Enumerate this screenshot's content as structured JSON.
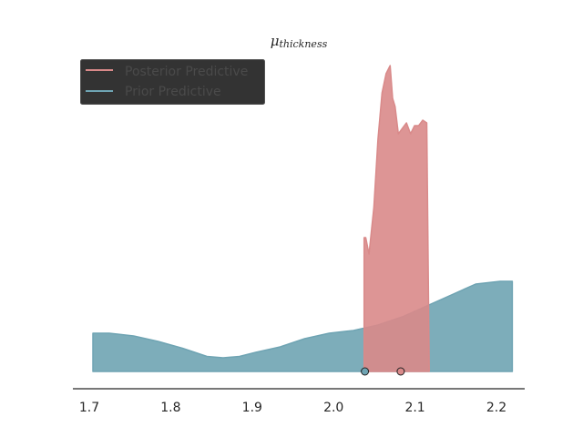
{
  "chart_data": {
    "type": "area",
    "title": {
      "symbol": "μ",
      "subscript": "thickness"
    },
    "xlim": [
      1.7,
      2.22
    ],
    "x_ticks": [
      "1.7",
      "1.8",
      "1.9",
      "2.0",
      "2.1",
      "2.2"
    ],
    "grid": false,
    "legend_position": "top-left",
    "series": [
      {
        "name": "Posterior Predictive",
        "color": "#d98a8a",
        "x": [
          2.033,
          2.035,
          2.039,
          2.045,
          2.05,
          2.055,
          2.06,
          2.065,
          2.068,
          2.071,
          2.075,
          2.08,
          2.085,
          2.09,
          2.095,
          2.1,
          2.105,
          2.11,
          2.113
        ],
        "y": [
          0.49,
          0.49,
          0.43,
          0.6,
          0.85,
          1.02,
          1.09,
          1.12,
          1.0,
          0.97,
          0.87,
          0.89,
          0.91,
          0.87,
          0.9,
          0.9,
          0.92,
          0.91,
          0.0
        ],
        "marker_x": 2.078
      },
      {
        "name": "Prior Predictive",
        "color": "#6fa4b3",
        "x": [
          1.7,
          1.72,
          1.75,
          1.78,
          1.81,
          1.84,
          1.86,
          1.88,
          1.9,
          1.93,
          1.96,
          1.99,
          2.02,
          2.05,
          2.08,
          2.11,
          2.14,
          2.17,
          2.2,
          2.215
        ],
        "y": [
          0.14,
          0.14,
          0.13,
          0.11,
          0.085,
          0.055,
          0.05,
          0.055,
          0.07,
          0.09,
          0.12,
          0.14,
          0.15,
          0.17,
          0.2,
          0.24,
          0.28,
          0.32,
          0.33,
          0.33
        ],
        "marker_x": 2.034
      }
    ]
  }
}
